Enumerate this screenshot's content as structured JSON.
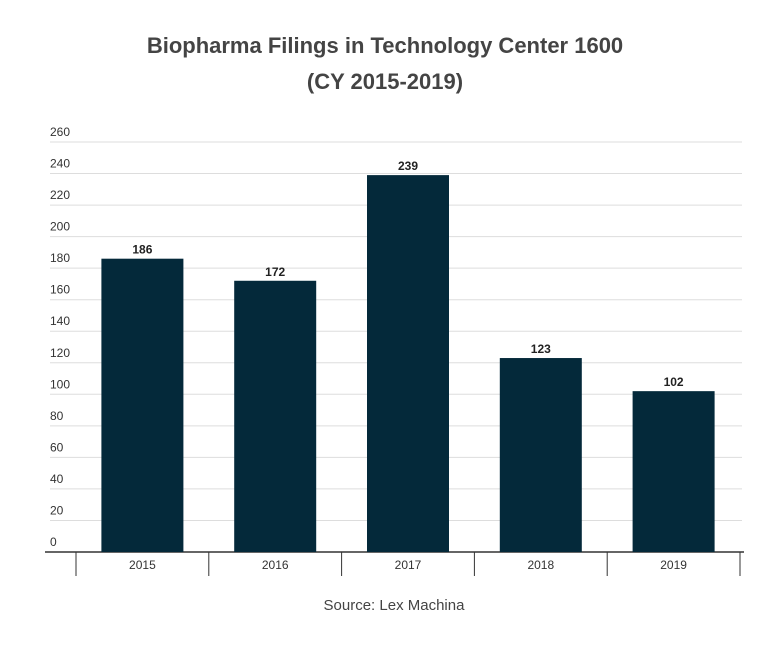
{
  "title_line1": "Biopharma Filings in Technology Center 1600",
  "title_line2": "(CY 2015-2019)",
  "source": "Source: Lex Machina",
  "colors": {
    "bar": "#04293a",
    "grid": "#dddddd",
    "axis": "#333333",
    "text": "#444444"
  },
  "chart_data": {
    "type": "bar",
    "title": "Biopharma Filings in Technology Center 1600 (CY 2015-2019)",
    "categories": [
      "2015",
      "2016",
      "2017",
      "2018",
      "2019"
    ],
    "values": [
      186,
      172,
      239,
      123,
      102
    ],
    "xlabel": "",
    "ylabel": "",
    "ylim": [
      0,
      260
    ],
    "yticks": [
      0,
      20,
      40,
      60,
      80,
      100,
      120,
      140,
      160,
      180,
      200,
      220,
      240,
      260
    ],
    "grid": true,
    "data_labels": true
  }
}
